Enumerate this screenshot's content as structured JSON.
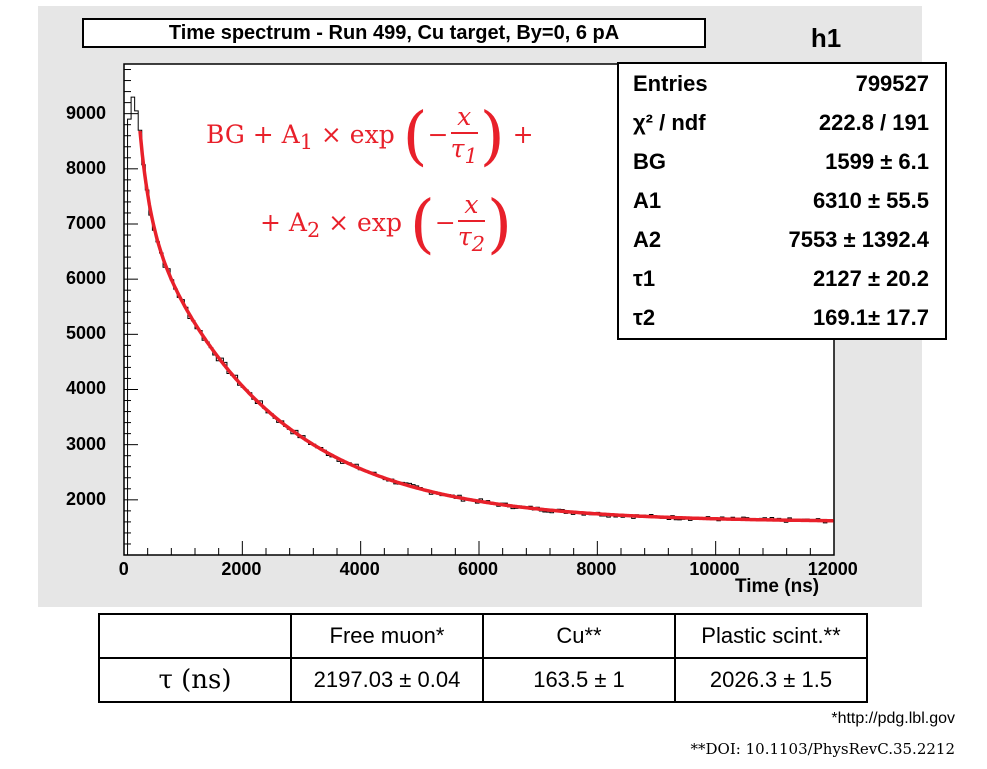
{
  "chart_data": {
    "type": "line",
    "title": "Time spectrum - Run 499, Cu target, By=0, 6 pA",
    "histogram_name": "h1",
    "xlabel": "Time (ns)",
    "ylabel": "",
    "xlim": [
      0,
      12000
    ],
    "ylim": [
      1000,
      9900
    ],
    "x_ticks": [
      0,
      2000,
      4000,
      6000,
      8000,
      10000,
      12000
    ],
    "y_ticks": [
      2000,
      3000,
      4000,
      5000,
      6000,
      7000,
      8000,
      9000
    ],
    "grid": false,
    "formula": {
      "line1": [
        "BG + A",
        "1",
        " × exp",
        "x",
        "τ",
        "1",
        "+"
      ],
      "line2": [
        "+ A",
        "2",
        " × exp",
        "x",
        "τ",
        "2"
      ]
    },
    "stats": [
      {
        "label": "Entries",
        "value": "799527"
      },
      {
        "label": "χ² / ndf",
        "value": "222.8 / 191"
      },
      {
        "label": "BG",
        "value": "1599 ± 6.1"
      },
      {
        "label": "A1",
        "value": "6310 ± 55.5"
      },
      {
        "label": "A2",
        "value": "7553 ± 1392.4"
      },
      {
        "label": "τ1",
        "value": "2127 ± 20.2"
      },
      {
        "label": "τ2",
        "value": "169.1± 17.7"
      }
    ],
    "fit": {
      "BG": 1599,
      "A1": 6310,
      "A2": 7553,
      "tau1": 2127,
      "tau2": 169.1,
      "x_start": 270,
      "x_end": 12000,
      "color": "#e8202a"
    },
    "histogram": {
      "bin_width": 60,
      "series": [
        {
          "x": 60,
          "y": 8900
        },
        {
          "x": 120,
          "y": 9300
        },
        {
          "x": 180,
          "y": 9050
        },
        {
          "x": 240,
          "y": 8700
        }
      ],
      "color": "#000000"
    }
  },
  "table": {
    "headers": [
      "",
      "Free muon*",
      "Cu**",
      "Plastic scint.**"
    ],
    "row": [
      "τ (ns)",
      "2197.03 ± 0.04",
      "163.5 ± 1",
      "2026.3 ± 1.5"
    ]
  },
  "footnotes": [
    "*http://pdg.lbl.gov",
    "**DOI: 10.1103/PhysRevC.35.2212"
  ]
}
